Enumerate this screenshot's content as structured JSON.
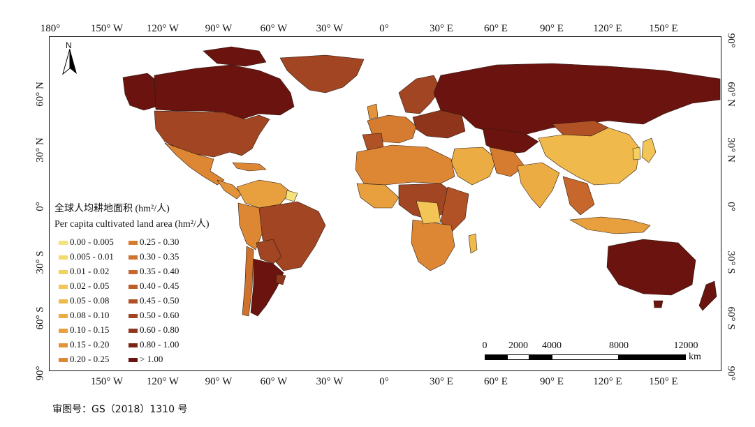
{
  "axis": {
    "top": [
      "180°",
      "150° W",
      "120° W",
      "90° W",
      "60° W",
      "30° W",
      "0°",
      "30° E",
      "60° E",
      "90° E",
      "120° E",
      "150° E"
    ],
    "bottom": [
      "150° W",
      "120° W",
      "90° W",
      "60° W",
      "30° W",
      "0°",
      "30° E",
      "60° E",
      "90° E",
      "120° E",
      "150° E"
    ],
    "left": [
      "60° N",
      "30° N",
      "0°",
      "30° S",
      "60° S",
      "90°"
    ],
    "right": [
      "90°",
      "60° N",
      "30° N",
      "0°",
      "30° S",
      "60° S",
      "90°"
    ]
  },
  "north_arrow": {
    "label": "N"
  },
  "legend": {
    "title_cn": "全球人均耕地面积 (hm²/人)",
    "title_en": "Per capita cultivated land area (hm²/人)",
    "classes": [
      {
        "label": "0.00 - 0.005",
        "color": "#f5e27a"
      },
      {
        "label": "0.005 - 0.01",
        "color": "#f4da6c"
      },
      {
        "label": "0.01 - 0.02",
        "color": "#f3d060"
      },
      {
        "label": "0.02 - 0.05",
        "color": "#f2c556"
      },
      {
        "label": "0.05 - 0.08",
        "color": "#efb94c"
      },
      {
        "label": "0.08 - 0.10",
        "color": "#ecac44"
      },
      {
        "label": "0.10 - 0.15",
        "color": "#e8a03f"
      },
      {
        "label": "0.15 - 0.20",
        "color": "#e3943a"
      },
      {
        "label": "0.20 - 0.25",
        "color": "#dd8735"
      },
      {
        "label": "0.25 - 0.30",
        "color": "#d67c31"
      },
      {
        "label": "0.30 - 0.35",
        "color": "#cf722e"
      },
      {
        "label": "0.35 - 0.40",
        "color": "#c7672b"
      },
      {
        "label": "0.40 - 0.45",
        "color": "#bd5d28"
      },
      {
        "label": "0.45 - 0.50",
        "color": "#b05225"
      },
      {
        "label": "0.50 - 0.60",
        "color": "#a24522"
      },
      {
        "label": "0.60 - 0.80",
        "color": "#8f351c"
      },
      {
        "label": "0.80 - 1.00",
        "color": "#7a2314"
      },
      {
        "label": "> 1.00",
        "color": "#6b130f"
      }
    ]
  },
  "scale_bar": {
    "labels": [
      "0",
      "2000",
      "4000",
      "8000",
      "12000"
    ],
    "unit": "km"
  },
  "approval_number": "审图号：GS（2018）1310 号"
}
